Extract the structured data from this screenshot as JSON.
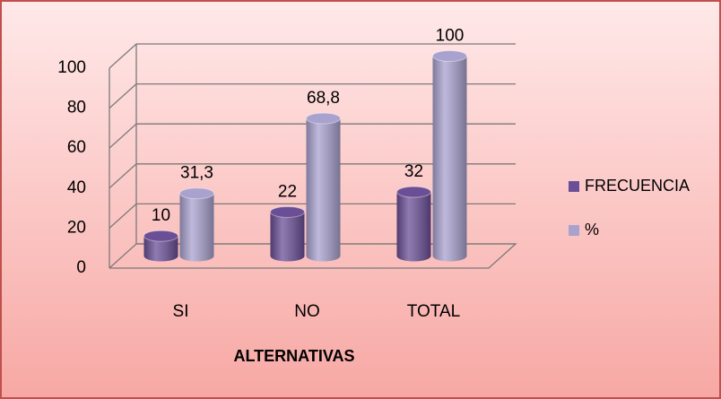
{
  "chart_data": {
    "type": "bar3d",
    "categories": [
      "SI",
      "NO",
      "TOTAL"
    ],
    "x_label": "ALTERNATIVAS",
    "series": [
      {
        "name": "FRECUENCIA",
        "color": "#6b4f96",
        "values": [
          10,
          22,
          32
        ]
      },
      {
        "name": "%",
        "color": "#a9a2cf",
        "values": [
          31.3,
          68.8,
          100
        ],
        "value_labels": [
          "31,3",
          "68,8",
          "100"
        ]
      }
    ],
    "ylim": [
      0,
      100
    ],
    "yticks": [
      0,
      20,
      40,
      60,
      80,
      100
    ],
    "grid": true,
    "legend": "right"
  }
}
